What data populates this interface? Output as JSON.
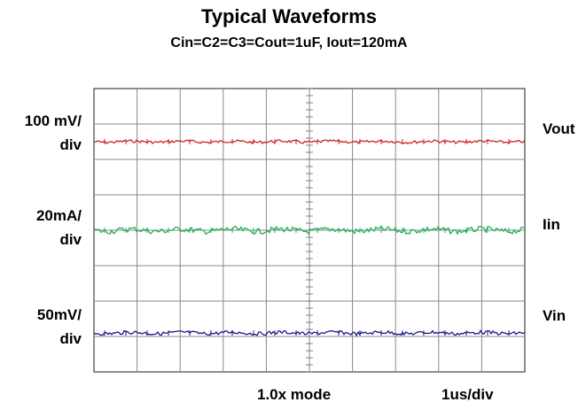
{
  "chart_data": {
    "type": "line",
    "title": "Typical Waveforms",
    "subtitle": "Cin=C2=C3=Cout=1uF, Iout=120mA",
    "grid": true,
    "grid_divisions": {
      "x": 10,
      "y": 8
    },
    "time_scale": "1us/div",
    "mode": "1.0x mode",
    "series": [
      {
        "name": "Vout",
        "scale": "100 mV/ div",
        "scale_line1": "100 mV/",
        "scale_line2": "div",
        "color": "#cc2222",
        "position_div": 1.5,
        "ripple_div": 0.04
      },
      {
        "name": "Iin",
        "scale": "20mA/ div",
        "scale_line1": "20mA/",
        "scale_line2": "div",
        "color": "#22b055",
        "position_div": 4.0,
        "ripple_div": 0.08
      },
      {
        "name": "Vin",
        "scale": "50mV/ div",
        "scale_line1": "50mV/",
        "scale_line2": "div",
        "color": "#1a1a8c",
        "position_div": 6.9,
        "ripple_div": 0.05
      }
    ]
  },
  "footer": {
    "mode": "1.0x mode",
    "timebase": "1us/div"
  }
}
